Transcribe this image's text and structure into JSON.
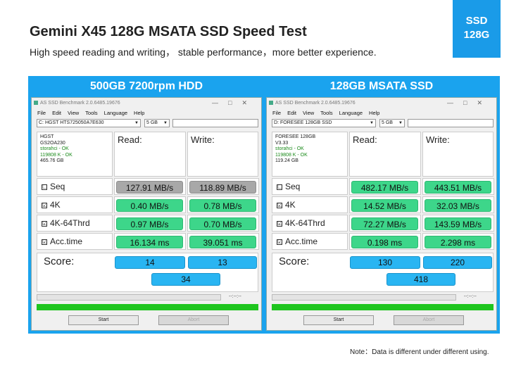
{
  "header": {
    "title": "Gemini X45 128G MSATA SSD Speed Test",
    "subtitle": "High speed reading and writing， stable performance，more better experience.",
    "badge_line1": "SSD",
    "badge_line2": "128G"
  },
  "app": {
    "window_title": "AS SSD Benchmark 2.0.6485.19676",
    "menu": [
      "File",
      "Edit",
      "View",
      "Tools",
      "Language",
      "Help"
    ],
    "col_read": "Read:",
    "col_write": "Write:",
    "score_label": "Score:",
    "elapsed": "--:--:--",
    "start_label": "Start",
    "abort_label": "Abort",
    "checkbox_checked": "☑",
    "checkbox_unchecked": "☐"
  },
  "left": {
    "panel_title": "500GB 7200rpm  HDD",
    "drive": "C: HGST HTS725050A7E630",
    "size": "5 GB",
    "info": {
      "model": "HGST",
      "firmware": "GS2OA230",
      "driver": "storahci - OK",
      "align": "119808 K - OK",
      "capacity": "465.76 GB"
    },
    "rows": [
      {
        "label": "Seq",
        "read": "127.91 MB/s",
        "write": "118.89 MB/s"
      },
      {
        "label": "4K",
        "read": "0.40 MB/s",
        "write": "0.78 MB/s"
      },
      {
        "label": "4K-64Thrd",
        "read": "0.97 MB/s",
        "write": "0.70 MB/s"
      },
      {
        "label": "Acc.time",
        "read": "16.134 ms",
        "write": "39.051 ms"
      }
    ],
    "score": {
      "read": "14",
      "write": "13",
      "total": "34"
    }
  },
  "right": {
    "panel_title": "128GB MSATA SSD",
    "drive": "D: FORESEE 128GB SSD",
    "size": "5 GB",
    "info": {
      "model": "FORESEE 128GB",
      "firmware": "V3.33",
      "driver": "storahci - OK",
      "align": "119808 K - OK",
      "capacity": "119.24 GB"
    },
    "rows": [
      {
        "label": "Seq",
        "read": "482.17 MB/s",
        "write": "443.51 MB/s"
      },
      {
        "label": "4K",
        "read": "14.52 MB/s",
        "write": "32.03 MB/s"
      },
      {
        "label": "4K-64Thrd",
        "read": "72.27 MB/s",
        "write": "143.59 MB/s"
      },
      {
        "label": "Acc.time",
        "read": "0.198 ms",
        "write": "2.298 ms"
      }
    ],
    "score": {
      "read": "130",
      "write": "220",
      "total": "418"
    }
  },
  "colors": {
    "accent": "#1aa3ee",
    "result_green": "#3dd68a",
    "score_blue": "#29b5f2",
    "progress_green": "#1ec51e"
  },
  "footer": {
    "note": "Note：Data is different under different using."
  }
}
